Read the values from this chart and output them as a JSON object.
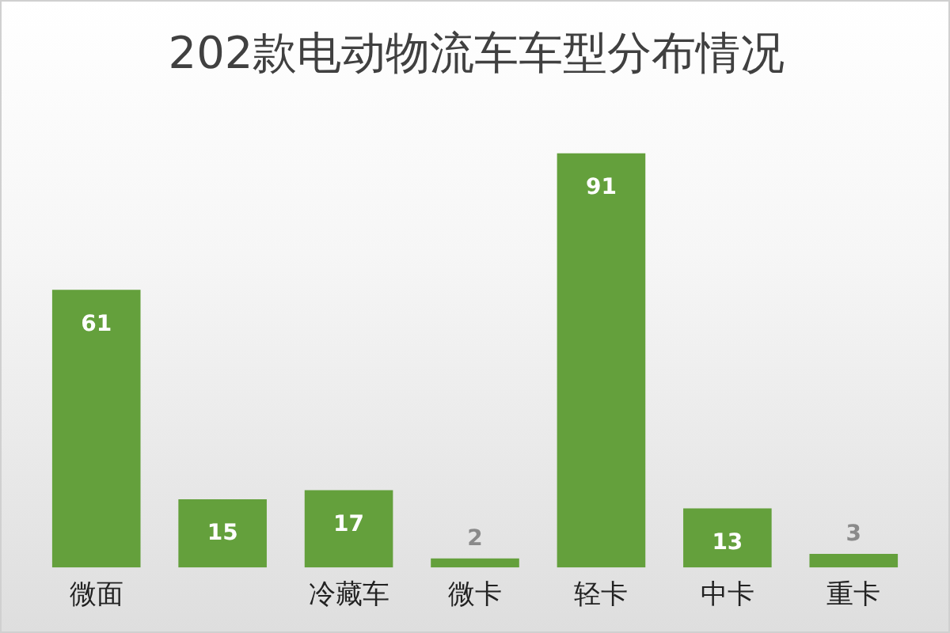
{
  "chart_data": {
    "type": "bar",
    "title": "202款电动物流车车型分布情况",
    "categories": [
      "微面",
      null,
      "冷藏车",
      "微卡",
      "轻卡",
      "中卡",
      "重卡"
    ],
    "values": [
      61,
      15,
      17,
      2,
      91,
      13,
      3
    ],
    "color": "#64a03c",
    "data_labels": true
  }
}
